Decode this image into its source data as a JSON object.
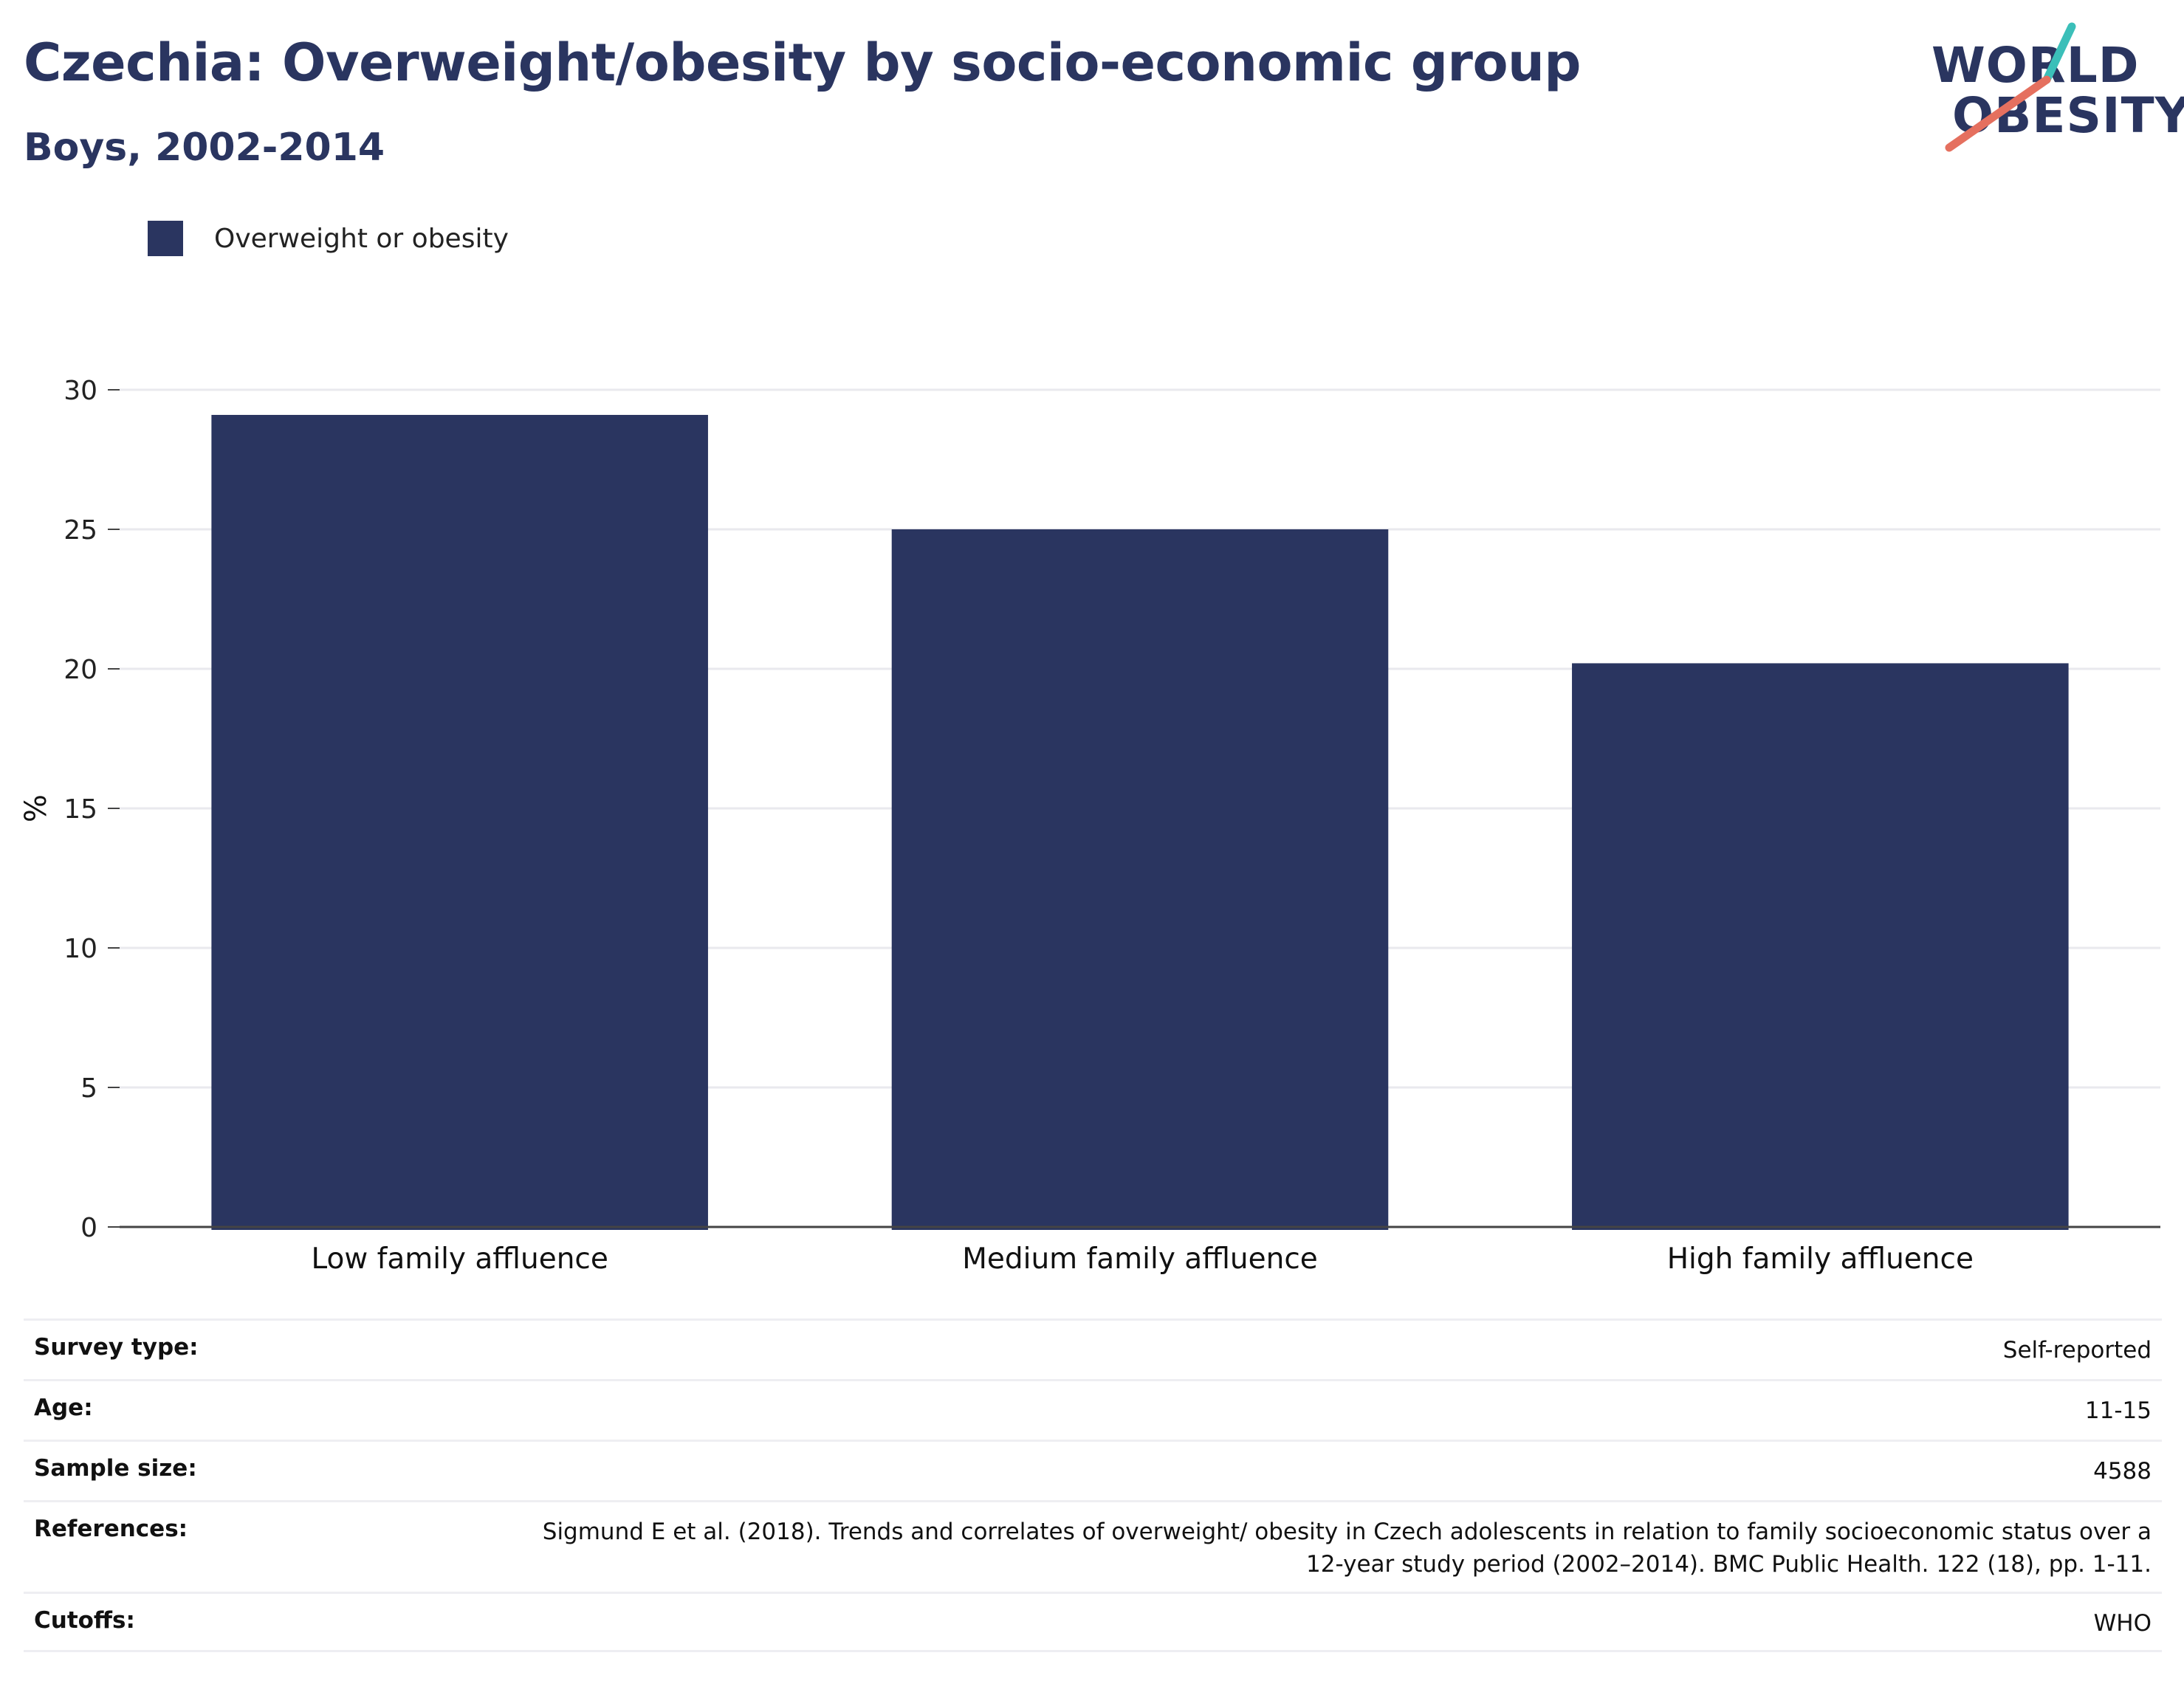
{
  "title": "Czechia: Overweight/obesity by socio-economic group",
  "subtitle": "Boys, 2002-2014",
  "logo": {
    "line1": "WORLD",
    "line2": "OBESITY"
  },
  "colors": {
    "bar": "#2a3560",
    "title": "#2a3560",
    "logo_teal": "#3bbfb9",
    "logo_coral": "#e5705f",
    "grid": "#e9e9ee"
  },
  "chart_data": {
    "type": "bar",
    "categories": [
      "Low family affluence",
      "Medium family affluence",
      "High family affluence"
    ],
    "series": [
      {
        "name": "Overweight or obesity",
        "values": [
          29.1,
          25.0,
          20.2
        ]
      }
    ],
    "ylabel": "%",
    "xlabel": "",
    "ylim": [
      0,
      30
    ],
    "yticks": [
      0,
      5,
      10,
      15,
      20,
      25,
      30
    ],
    "grid": true,
    "legend_position": "top-left"
  },
  "info": [
    {
      "key": "Survey type:",
      "value": "Self-reported"
    },
    {
      "key": "Age:",
      "value": "11-15"
    },
    {
      "key": "Sample size:",
      "value": "4588"
    },
    {
      "key": "References:",
      "value": "Sigmund E et al. (2018). Trends and correlates of overweight/ obesity in Czech adolescents in relation to family socioeconomic status over a 12-year study period (2002–2014). BMC Public Health. 122 (18), pp. 1-11."
    },
    {
      "key": "Cutoffs:",
      "value": "WHO"
    }
  ]
}
